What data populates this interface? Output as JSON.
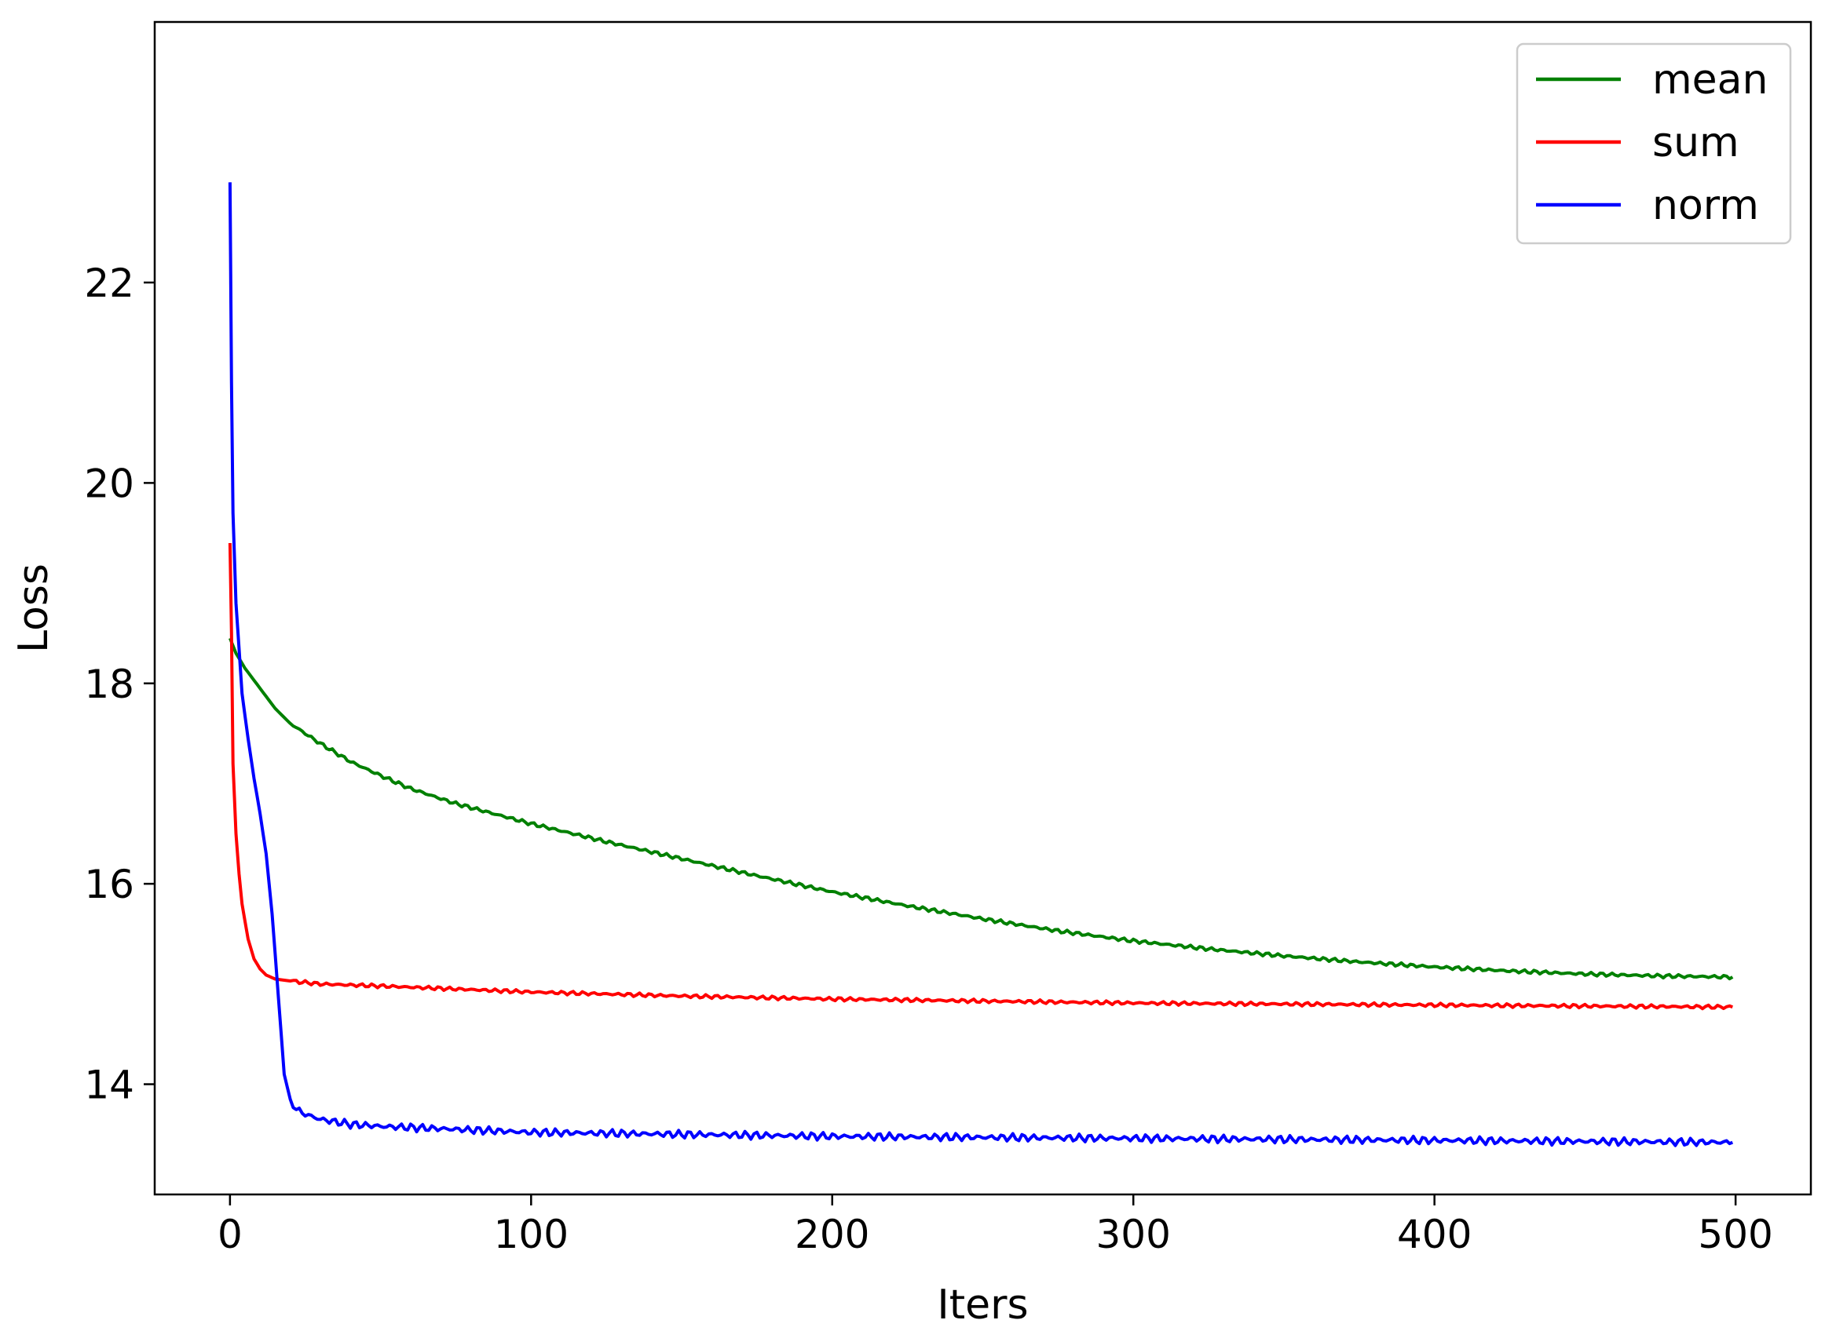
{
  "chart_data": {
    "type": "line",
    "title": "",
    "xlabel": "Iters",
    "ylabel": "Loss",
    "xlim": [
      -25,
      525
    ],
    "ylim": [
      12.9,
      24.6
    ],
    "xticks": [
      0,
      100,
      200,
      300,
      400,
      500
    ],
    "yticks": [
      14,
      16,
      18,
      20,
      22
    ],
    "grid": false,
    "legend_position": "top-right",
    "series": [
      {
        "name": "mean",
        "color": "#008000",
        "x": [
          0,
          2,
          5,
          10,
          15,
          20,
          30,
          40,
          50,
          60,
          75,
          100,
          125,
          150,
          175,
          200,
          225,
          250,
          275,
          300,
          325,
          350,
          375,
          400,
          425,
          450,
          475,
          499
        ],
        "y": [
          18.45,
          18.3,
          18.15,
          17.95,
          17.75,
          17.6,
          17.4,
          17.22,
          17.08,
          16.95,
          16.8,
          16.6,
          16.42,
          16.25,
          16.08,
          15.92,
          15.78,
          15.65,
          15.53,
          15.43,
          15.35,
          15.28,
          15.22,
          15.17,
          15.13,
          15.1,
          15.08,
          15.07
        ]
      },
      {
        "name": "sum",
        "color": "#ff0000",
        "x": [
          0,
          0.5,
          1,
          2,
          3,
          4,
          6,
          8,
          10,
          12,
          15,
          20,
          30,
          50,
          75,
          100,
          150,
          200,
          250,
          300,
          350,
          400,
          450,
          499
        ],
        "y": [
          19.4,
          18.5,
          17.2,
          16.5,
          16.1,
          15.8,
          15.45,
          15.25,
          15.15,
          15.09,
          15.05,
          15.03,
          15.0,
          14.98,
          14.95,
          14.92,
          14.88,
          14.85,
          14.83,
          14.81,
          14.8,
          14.79,
          14.78,
          14.77
        ]
      },
      {
        "name": "norm",
        "color": "#0000ff",
        "x": [
          0,
          0.5,
          1,
          2,
          4,
          6,
          8,
          10,
          12,
          14,
          16,
          18,
          20,
          22,
          25,
          30,
          40,
          50,
          75,
          100,
          150,
          200,
          250,
          300,
          350,
          400,
          450,
          499
        ],
        "y": [
          23.0,
          21.0,
          19.7,
          18.8,
          17.9,
          17.45,
          17.05,
          16.7,
          16.3,
          15.7,
          14.9,
          14.1,
          13.85,
          13.75,
          13.7,
          13.65,
          13.6,
          13.58,
          13.55,
          13.52,
          13.5,
          13.48,
          13.47,
          13.46,
          13.45,
          13.44,
          13.43,
          13.42
        ]
      }
    ]
  }
}
